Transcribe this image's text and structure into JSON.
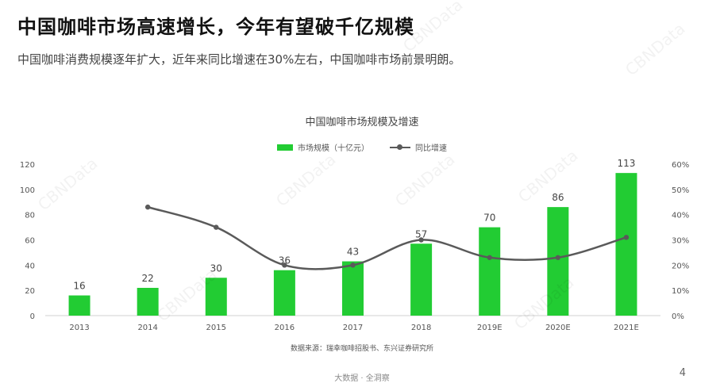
{
  "headline": "中国咖啡市场高速增长，今年有望破千亿规模",
  "subheadline": "中国咖啡消费规模逐年扩大，近年来同比增速在30%左右，中国咖啡市场前景明朗。",
  "watermark": "CBNData",
  "source": "数据来源：瑞幸咖啡招股书、东兴证券研究所",
  "footer": "大数据 · 全洞察",
  "page_number": "4",
  "colors": {
    "bar": "#22cc33",
    "line": "#5a5a5a",
    "axis_text": "#555555"
  },
  "chart_data": {
    "type": "bar",
    "title": "中国咖啡市场规模及增速",
    "categories": [
      "2013",
      "2014",
      "2015",
      "2016",
      "2017",
      "2018",
      "2019E",
      "2020E",
      "2021E"
    ],
    "series": [
      {
        "name": "市场规模（十亿元）",
        "type": "bar",
        "axis": "left",
        "values": [
          16,
          22,
          30,
          36,
          43,
          57,
          70,
          86,
          113
        ]
      },
      {
        "name": "同比增速",
        "type": "line",
        "axis": "right",
        "values": [
          null,
          43,
          35,
          20,
          20,
          30,
          23,
          23,
          31
        ]
      }
    ],
    "y_left": {
      "min": 0,
      "max": 120,
      "ticks": [
        0,
        20,
        40,
        60,
        80,
        100,
        120
      ]
    },
    "y_right": {
      "min": 0,
      "max": 60,
      "ticks": [
        "0%",
        "10%",
        "20%",
        "30%",
        "40%",
        "50%",
        "60%"
      ]
    },
    "legend_position": "top-center",
    "grid": false
  }
}
